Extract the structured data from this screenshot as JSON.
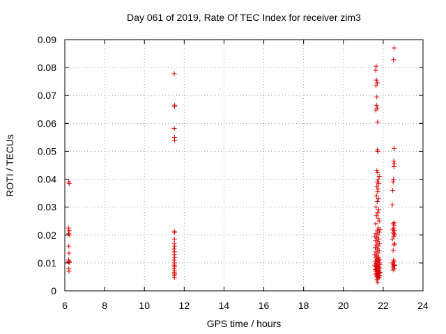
{
  "chart_data": {
    "type": "scatter",
    "title": "Day 061 of 2019, Rate Of TEC Index for receiver zim3",
    "xlabel": "GPS time / hours",
    "ylabel": "ROTI / TECUs",
    "xlim": [
      6,
      24
    ],
    "ylim": [
      0,
      0.09
    ],
    "x_ticks": [
      6,
      8,
      10,
      12,
      14,
      16,
      18,
      20,
      22,
      24
    ],
    "x_tick_labels": [
      "6",
      "8",
      "10",
      "12",
      "14",
      "16",
      "18",
      "20",
      "22",
      "24"
    ],
    "y_ticks": [
      0,
      0.01,
      0.02,
      0.03,
      0.04,
      0.05,
      0.06,
      0.07,
      0.08,
      0.09
    ],
    "y_tick_labels": [
      "0",
      "0.01",
      "0.02",
      "0.03",
      "0.04",
      "0.05",
      "0.06",
      "0.07",
      "0.08",
      "0.09"
    ],
    "grid": true,
    "marker": "+",
    "color": "#e00000",
    "series": [
      {
        "name": "ROTI",
        "points": [
          [
            6.2,
            0.039
          ],
          [
            6.22,
            0.0385
          ],
          [
            6.18,
            0.0225
          ],
          [
            6.21,
            0.0215
          ],
          [
            6.19,
            0.0205
          ],
          [
            6.22,
            0.02
          ],
          [
            6.2,
            0.016
          ],
          [
            6.21,
            0.0135
          ],
          [
            6.19,
            0.011
          ],
          [
            6.22,
            0.0105
          ],
          [
            6.18,
            0.0103
          ],
          [
            6.23,
            0.0102
          ],
          [
            6.2,
            0.008
          ],
          [
            6.21,
            0.007
          ],
          [
            11.5,
            0.0778
          ],
          [
            11.52,
            0.0665
          ],
          [
            11.51,
            0.066
          ],
          [
            11.5,
            0.0582
          ],
          [
            11.51,
            0.055
          ],
          [
            11.52,
            0.054
          ],
          [
            11.5,
            0.0212
          ],
          [
            11.52,
            0.021
          ],
          [
            11.51,
            0.0185
          ],
          [
            11.5,
            0.017
          ],
          [
            11.52,
            0.016
          ],
          [
            11.49,
            0.015
          ],
          [
            11.51,
            0.014
          ],
          [
            11.5,
            0.013
          ],
          [
            11.52,
            0.012
          ],
          [
            11.49,
            0.011
          ],
          [
            11.51,
            0.01
          ],
          [
            11.5,
            0.0092
          ],
          [
            11.52,
            0.0088
          ],
          [
            11.49,
            0.008
          ],
          [
            11.51,
            0.0072
          ],
          [
            11.5,
            0.0065
          ],
          [
            11.52,
            0.006
          ],
          [
            11.5,
            0.0055
          ],
          [
            11.51,
            0.0048
          ],
          [
            21.65,
            0.0805
          ],
          [
            21.62,
            0.079
          ],
          [
            21.66,
            0.0755
          ],
          [
            21.7,
            0.0745
          ],
          [
            21.64,
            0.0735
          ],
          [
            21.68,
            0.0695
          ],
          [
            21.66,
            0.0665
          ],
          [
            21.7,
            0.0655
          ],
          [
            21.63,
            0.0648
          ],
          [
            21.72,
            0.0605
          ],
          [
            21.7,
            0.0505
          ],
          [
            21.73,
            0.05
          ],
          [
            21.68,
            0.043
          ],
          [
            21.72,
            0.0425
          ],
          [
            21.8,
            0.041
          ],
          [
            21.75,
            0.0398
          ],
          [
            21.7,
            0.039
          ],
          [
            21.78,
            0.0385
          ],
          [
            21.68,
            0.0375
          ],
          [
            21.74,
            0.0365
          ],
          [
            21.72,
            0.0355
          ],
          [
            21.66,
            0.034
          ],
          [
            21.76,
            0.033
          ],
          [
            21.7,
            0.032
          ],
          [
            21.64,
            0.03
          ],
          [
            21.78,
            0.029
          ],
          [
            21.72,
            0.028
          ],
          [
            21.66,
            0.027
          ],
          [
            21.74,
            0.026
          ],
          [
            21.8,
            0.025
          ],
          [
            21.62,
            0.024
          ],
          [
            21.76,
            0.0225
          ],
          [
            21.84,
            0.022
          ],
          [
            21.7,
            0.0215
          ],
          [
            21.8,
            0.021
          ],
          [
            21.64,
            0.0205
          ],
          [
            21.74,
            0.02
          ],
          [
            21.58,
            0.0195
          ],
          [
            21.68,
            0.019
          ],
          [
            21.78,
            0.0185
          ],
          [
            21.62,
            0.018
          ],
          [
            21.72,
            0.0175
          ],
          [
            21.82,
            0.017
          ],
          [
            21.66,
            0.0165
          ],
          [
            21.76,
            0.016
          ],
          [
            21.6,
            0.0155
          ],
          [
            21.7,
            0.015
          ],
          [
            21.8,
            0.0145
          ],
          [
            21.64,
            0.014
          ],
          [
            21.74,
            0.0135
          ],
          [
            21.58,
            0.013
          ],
          [
            21.68,
            0.0125
          ],
          [
            21.78,
            0.012
          ],
          [
            21.62,
            0.0118
          ],
          [
            21.72,
            0.0115
          ],
          [
            21.82,
            0.0112
          ],
          [
            21.66,
            0.011
          ],
          [
            21.76,
            0.0108
          ],
          [
            21.6,
            0.0105
          ],
          [
            21.7,
            0.0102
          ],
          [
            21.8,
            0.01
          ],
          [
            21.64,
            0.0098
          ],
          [
            21.74,
            0.0096
          ],
          [
            21.84,
            0.0094
          ],
          [
            21.58,
            0.0092
          ],
          [
            21.68,
            0.009
          ],
          [
            21.78,
            0.0088
          ],
          [
            21.62,
            0.0086
          ],
          [
            21.72,
            0.0084
          ],
          [
            21.82,
            0.0082
          ],
          [
            21.66,
            0.008
          ],
          [
            21.76,
            0.0078
          ],
          [
            21.6,
            0.0076
          ],
          [
            21.7,
            0.0074
          ],
          [
            21.8,
            0.0072
          ],
          [
            21.64,
            0.007
          ],
          [
            21.74,
            0.0068
          ],
          [
            21.84,
            0.0066
          ],
          [
            21.68,
            0.0064
          ],
          [
            21.78,
            0.0062
          ],
          [
            21.62,
            0.006
          ],
          [
            21.72,
            0.0058
          ],
          [
            21.82,
            0.0056
          ],
          [
            21.66,
            0.0054
          ],
          [
            21.76,
            0.0052
          ],
          [
            21.7,
            0.005
          ],
          [
            21.8,
            0.0048
          ],
          [
            21.74,
            0.0045
          ],
          [
            21.68,
            0.004
          ],
          [
            21.72,
            0.003
          ],
          [
            22.55,
            0.087
          ],
          [
            22.52,
            0.0828
          ],
          [
            22.55,
            0.051
          ],
          [
            22.53,
            0.0465
          ],
          [
            22.56,
            0.0455
          ],
          [
            22.54,
            0.0445
          ],
          [
            22.52,
            0.04
          ],
          [
            22.5,
            0.039
          ],
          [
            22.48,
            0.036
          ],
          [
            22.46,
            0.0308
          ],
          [
            22.56,
            0.0245
          ],
          [
            22.5,
            0.024
          ],
          [
            22.54,
            0.0235
          ],
          [
            22.52,
            0.0225
          ],
          [
            22.48,
            0.022
          ],
          [
            22.56,
            0.0215
          ],
          [
            22.5,
            0.021
          ],
          [
            22.54,
            0.0205
          ],
          [
            22.58,
            0.02
          ],
          [
            22.52,
            0.0195
          ],
          [
            22.46,
            0.0185
          ],
          [
            22.58,
            0.017
          ],
          [
            22.54,
            0.0165
          ],
          [
            22.5,
            0.0145
          ],
          [
            22.52,
            0.011
          ],
          [
            22.56,
            0.0105
          ],
          [
            22.46,
            0.01
          ],
          [
            22.5,
            0.0095
          ],
          [
            22.58,
            0.0092
          ],
          [
            22.54,
            0.009
          ],
          [
            22.48,
            0.0085
          ],
          [
            22.56,
            0.008
          ],
          [
            22.5,
            0.0075
          ]
        ]
      }
    ]
  }
}
